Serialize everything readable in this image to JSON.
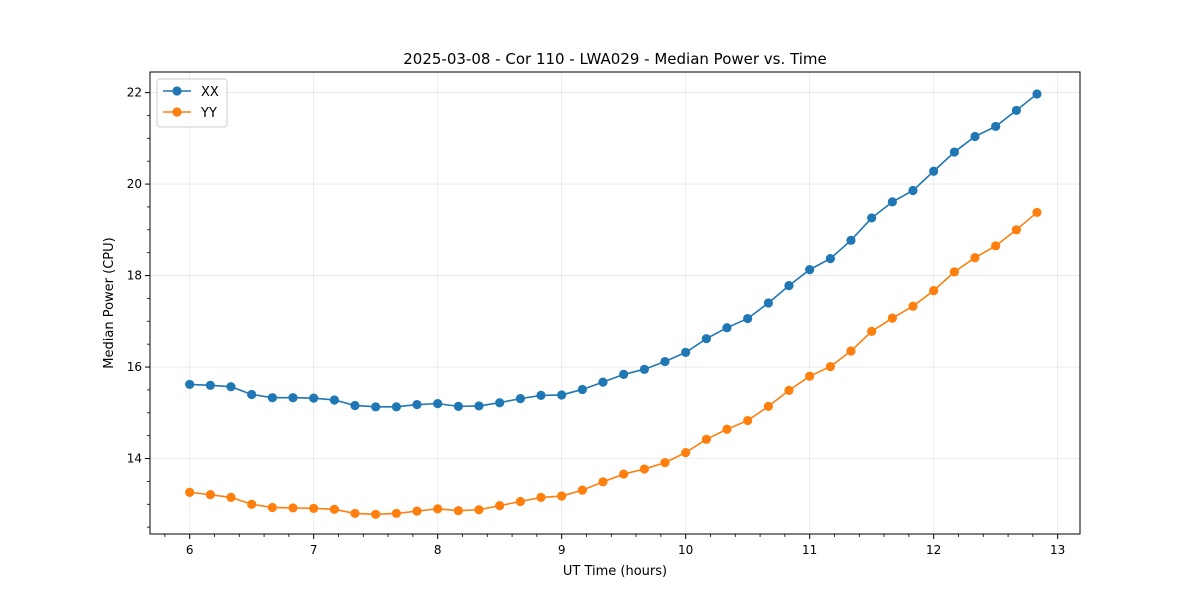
{
  "chart_data": {
    "type": "line",
    "title": "2025-03-08 - Cor 110 - LWA029 - Median Power vs. Time",
    "xlabel": "UT Time (hours)",
    "ylabel": "Median Power (CPU)",
    "xlim": [
      5.68,
      13.18
    ],
    "ylim": [
      12.35,
      22.45
    ],
    "xticks": [
      6,
      7,
      8,
      9,
      10,
      11,
      12,
      13
    ],
    "yticks": [
      14,
      16,
      18,
      20,
      22
    ],
    "grid": true,
    "legend_position": "top-left",
    "x": [
      6.0,
      6.167,
      6.333,
      6.5,
      6.667,
      6.833,
      7.0,
      7.167,
      7.333,
      7.5,
      7.667,
      7.833,
      8.0,
      8.167,
      8.333,
      8.5,
      8.667,
      8.833,
      9.0,
      9.167,
      9.333,
      9.5,
      9.667,
      9.833,
      10.0,
      10.167,
      10.333,
      10.5,
      10.667,
      10.833,
      11.0,
      11.167,
      11.333,
      11.5,
      11.667,
      11.833,
      12.0,
      12.167,
      12.333,
      12.5,
      12.667,
      12.833
    ],
    "series": [
      {
        "name": "XX",
        "color": "#1f77b4",
        "values": [
          15.62,
          15.6,
          15.57,
          15.4,
          15.33,
          15.33,
          15.32,
          15.28,
          15.16,
          15.13,
          15.13,
          15.18,
          15.2,
          15.14,
          15.15,
          15.22,
          15.31,
          15.38,
          15.39,
          15.51,
          15.67,
          15.84,
          15.95,
          16.12,
          16.32,
          16.62,
          16.86,
          17.06,
          17.4,
          17.78,
          18.13,
          18.37,
          18.77,
          19.26,
          19.61,
          19.86,
          20.28,
          20.7,
          21.04,
          21.26,
          21.61,
          21.97
        ]
      },
      {
        "name": "YY",
        "color": "#ff7f0e",
        "values": [
          13.26,
          13.21,
          13.15,
          13.0,
          12.93,
          12.92,
          12.91,
          12.89,
          12.8,
          12.78,
          12.8,
          12.85,
          12.9,
          12.86,
          12.88,
          12.97,
          13.06,
          13.15,
          13.18,
          13.31,
          13.49,
          13.66,
          13.77,
          13.91,
          14.13,
          14.42,
          14.64,
          14.83,
          15.14,
          15.49,
          15.8,
          16.01,
          16.35,
          16.78,
          17.07,
          17.33,
          17.67,
          18.08,
          18.39,
          18.65,
          19.0,
          19.38
        ]
      }
    ]
  }
}
